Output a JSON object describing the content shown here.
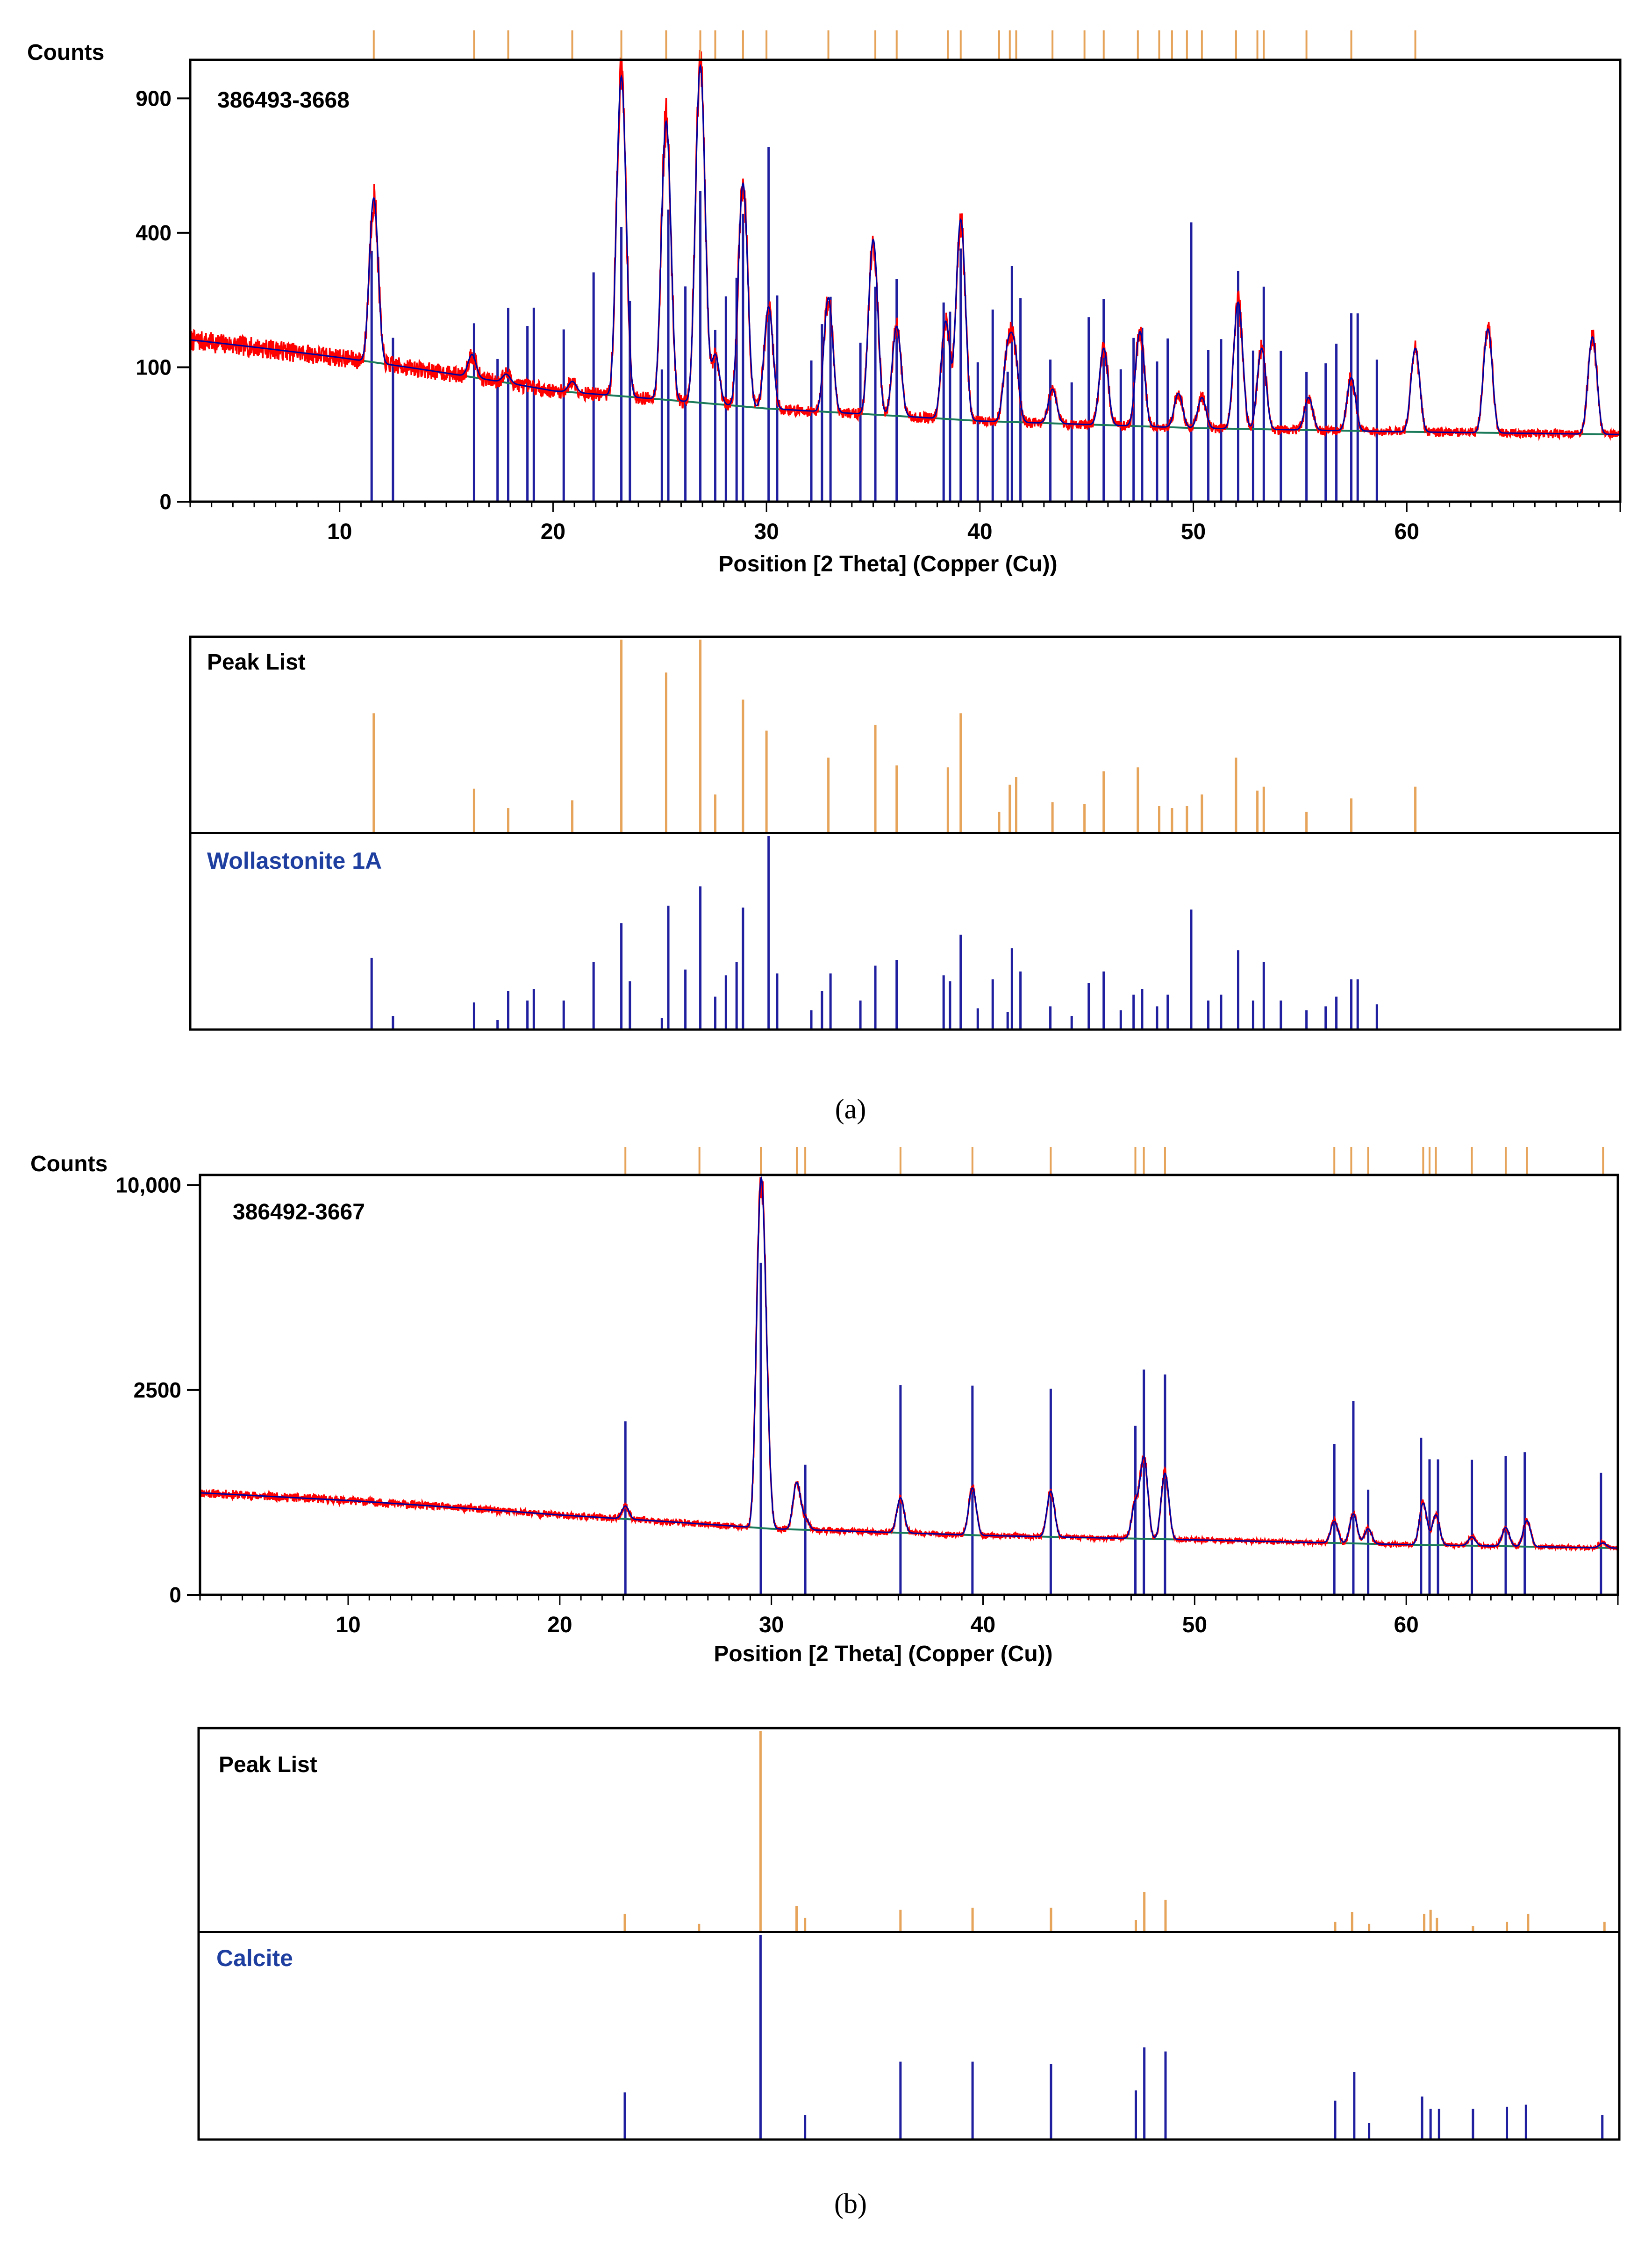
{
  "figure": {
    "caption_a": "(a)",
    "caption_b": "(b)"
  },
  "colors": {
    "observed": "#ff0000",
    "fitted": "#0000a0",
    "reference": "#1f1fa0",
    "peaklist": "#e6a35a",
    "background": "#1a7a5a",
    "lightref": "#b8d8f0",
    "frame": "#000000"
  },
  "chart_data": [
    {
      "panel": "a",
      "type": "line",
      "sample_label": "386493-3668",
      "ylabel": "Counts",
      "xlabel": "Position [2 Theta] (Copper (Cu))",
      "xlim": [
        3,
        70
      ],
      "x_ticks": [
        10,
        20,
        30,
        40,
        50,
        60
      ],
      "y_ticks": [
        0,
        100,
        400,
        900
      ],
      "y_scale": "sqrt",
      "ylim": [
        0,
        1080
      ],
      "background_curve": [
        [
          3,
          145
        ],
        [
          10,
          115
        ],
        [
          20,
          68
        ],
        [
          30,
          48
        ],
        [
          40,
          36
        ],
        [
          50,
          30
        ],
        [
          60,
          27
        ],
        [
          70,
          25
        ]
      ],
      "observed_peaks": [
        {
          "x": 11.6,
          "y": 510
        },
        {
          "x": 16.2,
          "y": 120
        },
        {
          "x": 17.8,
          "y": 90
        },
        {
          "x": 20.9,
          "y": 80
        },
        {
          "x": 23.2,
          "y": 1000
        },
        {
          "x": 25.3,
          "y": 800
        },
        {
          "x": 26.9,
          "y": 1050
        },
        {
          "x": 27.6,
          "y": 120
        },
        {
          "x": 28.9,
          "y": 560
        },
        {
          "x": 30.1,
          "y": 210
        },
        {
          "x": 32.9,
          "y": 230
        },
        {
          "x": 35.0,
          "y": 380
        },
        {
          "x": 36.1,
          "y": 170
        },
        {
          "x": 38.4,
          "y": 180
        },
        {
          "x": 39.1,
          "y": 440
        },
        {
          "x": 41.3,
          "y": 120
        },
        {
          "x": 41.6,
          "y": 125
        },
        {
          "x": 43.4,
          "y": 70
        },
        {
          "x": 45.8,
          "y": 130
        },
        {
          "x": 47.5,
          "y": 160
        },
        {
          "x": 49.3,
          "y": 65
        },
        {
          "x": 50.4,
          "y": 60
        },
        {
          "x": 52.1,
          "y": 220
        },
        {
          "x": 53.2,
          "y": 130
        },
        {
          "x": 55.4,
          "y": 60
        },
        {
          "x": 57.4,
          "y": 85
        },
        {
          "x": 60.4,
          "y": 130
        },
        {
          "x": 63.8,
          "y": 165
        },
        {
          "x": 68.7,
          "y": 150
        }
      ],
      "reference_phase": "Wollastonite 1A",
      "reference_lines": [
        {
          "x": 11.5,
          "i": 0.37
        },
        {
          "x": 12.5,
          "i": 0.07
        },
        {
          "x": 16.3,
          "i": 0.14
        },
        {
          "x": 17.4,
          "i": 0.05
        },
        {
          "x": 17.9,
          "i": 0.2
        },
        {
          "x": 18.8,
          "i": 0.15
        },
        {
          "x": 19.1,
          "i": 0.21
        },
        {
          "x": 20.5,
          "i": 0.15
        },
        {
          "x": 21.9,
          "i": 0.35
        },
        {
          "x": 23.2,
          "i": 0.55
        },
        {
          "x": 23.6,
          "i": 0.25
        },
        {
          "x": 25.1,
          "i": 0.06
        },
        {
          "x": 25.4,
          "i": 0.64
        },
        {
          "x": 26.2,
          "i": 0.31
        },
        {
          "x": 26.9,
          "i": 0.74
        },
        {
          "x": 27.6,
          "i": 0.17
        },
        {
          "x": 28.1,
          "i": 0.28
        },
        {
          "x": 28.6,
          "i": 0.35
        },
        {
          "x": 28.9,
          "i": 0.63
        },
        {
          "x": 30.1,
          "i": 1.0
        },
        {
          "x": 30.5,
          "i": 0.29
        },
        {
          "x": 32.1,
          "i": 0.1
        },
        {
          "x": 32.6,
          "i": 0.2
        },
        {
          "x": 33.0,
          "i": 0.29
        },
        {
          "x": 34.4,
          "i": 0.15
        },
        {
          "x": 35.1,
          "i": 0.33
        },
        {
          "x": 36.1,
          "i": 0.36
        },
        {
          "x": 38.3,
          "i": 0.28
        },
        {
          "x": 38.6,
          "i": 0.25
        },
        {
          "x": 39.1,
          "i": 0.49
        },
        {
          "x": 39.9,
          "i": 0.11
        },
        {
          "x": 40.6,
          "i": 0.26
        },
        {
          "x": 41.3,
          "i": 0.09
        },
        {
          "x": 41.5,
          "i": 0.42
        },
        {
          "x": 41.9,
          "i": 0.3
        },
        {
          "x": 43.3,
          "i": 0.12
        },
        {
          "x": 44.3,
          "i": 0.07
        },
        {
          "x": 45.1,
          "i": 0.24
        },
        {
          "x": 45.8,
          "i": 0.3
        },
        {
          "x": 46.6,
          "i": 0.1
        },
        {
          "x": 47.2,
          "i": 0.18
        },
        {
          "x": 47.6,
          "i": 0.21
        },
        {
          "x": 48.3,
          "i": 0.12
        },
        {
          "x": 48.8,
          "i": 0.18
        },
        {
          "x": 49.9,
          "i": 0.62
        },
        {
          "x": 50.7,
          "i": 0.15
        },
        {
          "x": 51.3,
          "i": 0.18
        },
        {
          "x": 52.1,
          "i": 0.41
        },
        {
          "x": 52.8,
          "i": 0.15
        },
        {
          "x": 53.3,
          "i": 0.35
        },
        {
          "x": 54.1,
          "i": 0.15
        },
        {
          "x": 55.3,
          "i": 0.1
        },
        {
          "x": 56.2,
          "i": 0.12
        },
        {
          "x": 56.7,
          "i": 0.17
        },
        {
          "x": 57.4,
          "i": 0.26
        },
        {
          "x": 57.7,
          "i": 0.26
        },
        {
          "x": 58.6,
          "i": 0.13
        }
      ],
      "peak_list": [
        {
          "x": 11.6,
          "i": 0.62
        },
        {
          "x": 16.3,
          "i": 0.23
        },
        {
          "x": 17.9,
          "i": 0.13
        },
        {
          "x": 20.9,
          "i": 0.17
        },
        {
          "x": 23.2,
          "i": 1.0
        },
        {
          "x": 25.3,
          "i": 0.83
        },
        {
          "x": 26.9,
          "i": 1.0
        },
        {
          "x": 27.6,
          "i": 0.2
        },
        {
          "x": 28.9,
          "i": 0.69
        },
        {
          "x": 30.0,
          "i": 0.53
        },
        {
          "x": 32.9,
          "i": 0.39
        },
        {
          "x": 35.1,
          "i": 0.56
        },
        {
          "x": 36.1,
          "i": 0.35
        },
        {
          "x": 38.5,
          "i": 0.34
        },
        {
          "x": 39.1,
          "i": 0.62
        },
        {
          "x": 40.9,
          "i": 0.11
        },
        {
          "x": 41.4,
          "i": 0.25
        },
        {
          "x": 41.7,
          "i": 0.29
        },
        {
          "x": 43.4,
          "i": 0.16
        },
        {
          "x": 44.9,
          "i": 0.15
        },
        {
          "x": 45.8,
          "i": 0.32
        },
        {
          "x": 47.4,
          "i": 0.34
        },
        {
          "x": 48.4,
          "i": 0.14
        },
        {
          "x": 49.0,
          "i": 0.13
        },
        {
          "x": 49.7,
          "i": 0.14
        },
        {
          "x": 50.4,
          "i": 0.2
        },
        {
          "x": 52.0,
          "i": 0.39
        },
        {
          "x": 53.0,
          "i": 0.22
        },
        {
          "x": 53.3,
          "i": 0.24
        },
        {
          "x": 55.3,
          "i": 0.11
        },
        {
          "x": 57.4,
          "i": 0.18
        },
        {
          "x": 60.4,
          "i": 0.24
        }
      ],
      "peak_list_label": "Peak List"
    },
    {
      "panel": "b",
      "type": "line",
      "sample_label": "386492-3667",
      "ylabel": "Counts",
      "xlabel": "Position [2 Theta] (Copper (Cu))",
      "xlim": [
        3,
        70
      ],
      "x_ticks": [
        10,
        20,
        30,
        40,
        50,
        60
      ],
      "y_ticks": [
        0,
        2500,
        10000
      ],
      "y_tick_labels": [
        "0",
        "2500",
        "10,000"
      ],
      "y_scale": "sqrt",
      "ylim": [
        0,
        10500
      ],
      "background_curve": [
        [
          3,
          620
        ],
        [
          10,
          530
        ],
        [
          20,
          380
        ],
        [
          30,
          260
        ],
        [
          40,
          210
        ],
        [
          50,
          180
        ],
        [
          60,
          150
        ],
        [
          70,
          130
        ]
      ],
      "observed_peaks": [
        {
          "x": 23.1,
          "y": 470
        },
        {
          "x": 26.6,
          "y": 270
        },
        {
          "x": 29.5,
          "y": 9400
        },
        {
          "x": 29.7,
          "y": 2200
        },
        {
          "x": 31.2,
          "y": 750
        },
        {
          "x": 31.6,
          "y": 350
        },
        {
          "x": 36.1,
          "y": 560
        },
        {
          "x": 39.5,
          "y": 680
        },
        {
          "x": 43.2,
          "y": 640
        },
        {
          "x": 47.2,
          "y": 500
        },
        {
          "x": 47.6,
          "y": 1120
        },
        {
          "x": 48.6,
          "y": 880
        },
        {
          "x": 56.6,
          "y": 320
        },
        {
          "x": 57.5,
          "y": 390
        },
        {
          "x": 58.2,
          "y": 260
        },
        {
          "x": 60.8,
          "y": 500
        },
        {
          "x": 61.4,
          "y": 380
        },
        {
          "x": 63.1,
          "y": 200
        },
        {
          "x": 64.7,
          "y": 270
        },
        {
          "x": 65.7,
          "y": 330
        },
        {
          "x": 69.3,
          "y": 160
        }
      ],
      "reference_phase": "Calcite",
      "reference_lines": [
        {
          "x": 23.1,
          "i": 0.23
        },
        {
          "x": 29.5,
          "i": 1.0
        },
        {
          "x": 31.6,
          "i": 0.12
        },
        {
          "x": 36.1,
          "i": 0.38
        },
        {
          "x": 39.5,
          "i": 0.38
        },
        {
          "x": 43.2,
          "i": 0.37
        },
        {
          "x": 47.2,
          "i": 0.24
        },
        {
          "x": 47.6,
          "i": 0.45
        },
        {
          "x": 48.6,
          "i": 0.43
        },
        {
          "x": 56.6,
          "i": 0.19
        },
        {
          "x": 57.5,
          "i": 0.33
        },
        {
          "x": 58.2,
          "i": 0.08
        },
        {
          "x": 60.7,
          "i": 0.21
        },
        {
          "x": 61.1,
          "i": 0.15
        },
        {
          "x": 61.5,
          "i": 0.15
        },
        {
          "x": 63.1,
          "i": 0.15
        },
        {
          "x": 64.7,
          "i": 0.16
        },
        {
          "x": 65.6,
          "i": 0.17
        },
        {
          "x": 69.2,
          "i": 0.12
        }
      ],
      "peak_list": [
        {
          "x": 23.1,
          "i": 0.09
        },
        {
          "x": 26.6,
          "i": 0.04
        },
        {
          "x": 29.5,
          "i": 1.0
        },
        {
          "x": 31.2,
          "i": 0.13
        },
        {
          "x": 31.6,
          "i": 0.07
        },
        {
          "x": 36.1,
          "i": 0.11
        },
        {
          "x": 39.5,
          "i": 0.12
        },
        {
          "x": 43.2,
          "i": 0.12
        },
        {
          "x": 47.2,
          "i": 0.06
        },
        {
          "x": 47.6,
          "i": 0.2
        },
        {
          "x": 48.6,
          "i": 0.16
        },
        {
          "x": 56.6,
          "i": 0.05
        },
        {
          "x": 57.4,
          "i": 0.1
        },
        {
          "x": 58.2,
          "i": 0.04
        },
        {
          "x": 60.8,
          "i": 0.09
        },
        {
          "x": 61.1,
          "i": 0.11
        },
        {
          "x": 61.4,
          "i": 0.07
        },
        {
          "x": 63.1,
          "i": 0.03
        },
        {
          "x": 64.7,
          "i": 0.05
        },
        {
          "x": 65.7,
          "i": 0.09
        },
        {
          "x": 69.3,
          "i": 0.05
        }
      ],
      "peak_list_label": "Peak List"
    }
  ]
}
